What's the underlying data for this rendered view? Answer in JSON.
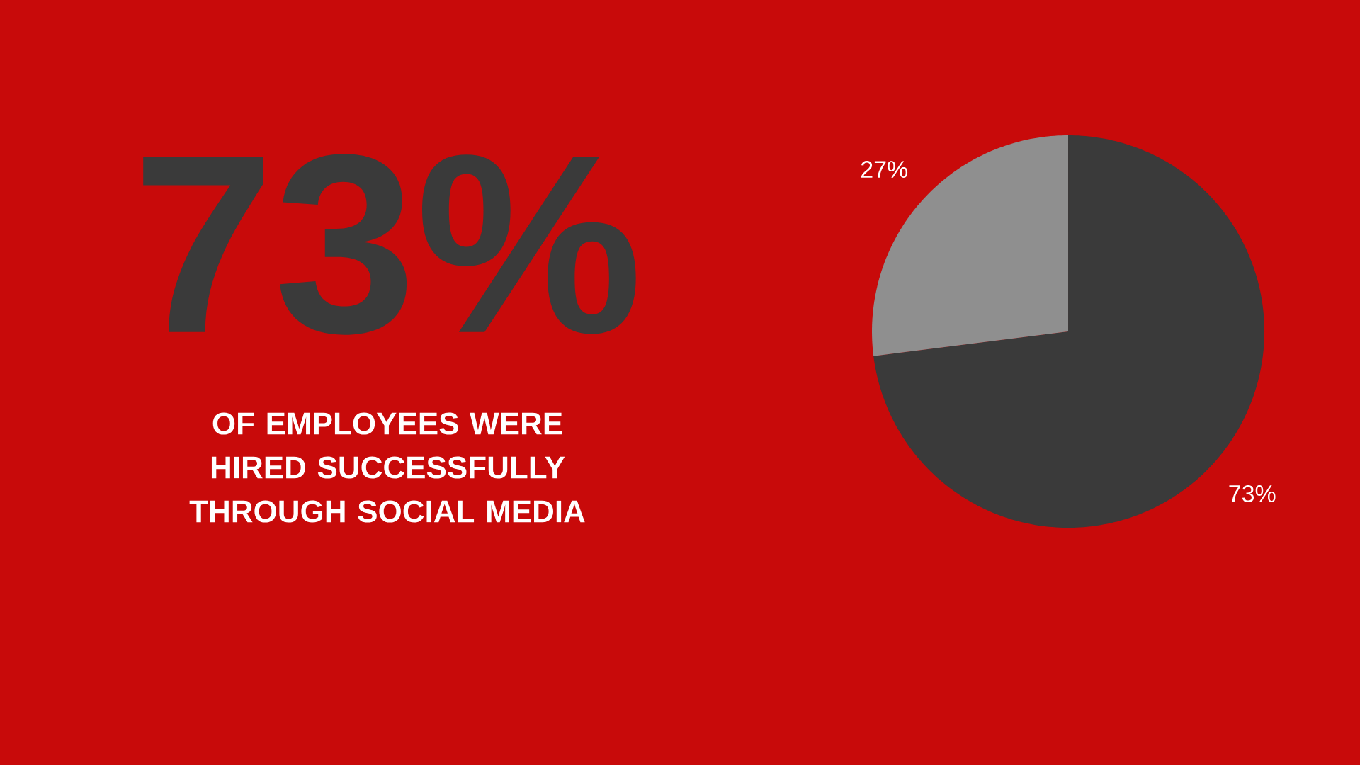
{
  "chart_data": {
    "type": "pie",
    "title": "73%",
    "subtitle": "OF EMPLOYEES WERE HIRED SUCCESSFULLY THROUGH SOCIAL MEDIA",
    "categories": [
      null,
      null
    ],
    "values": [
      73,
      27
    ],
    "colors": [
      "#3a3a3a",
      "#8f8f8f"
    ],
    "value_labels": [
      "73%",
      "27%"
    ]
  }
}
